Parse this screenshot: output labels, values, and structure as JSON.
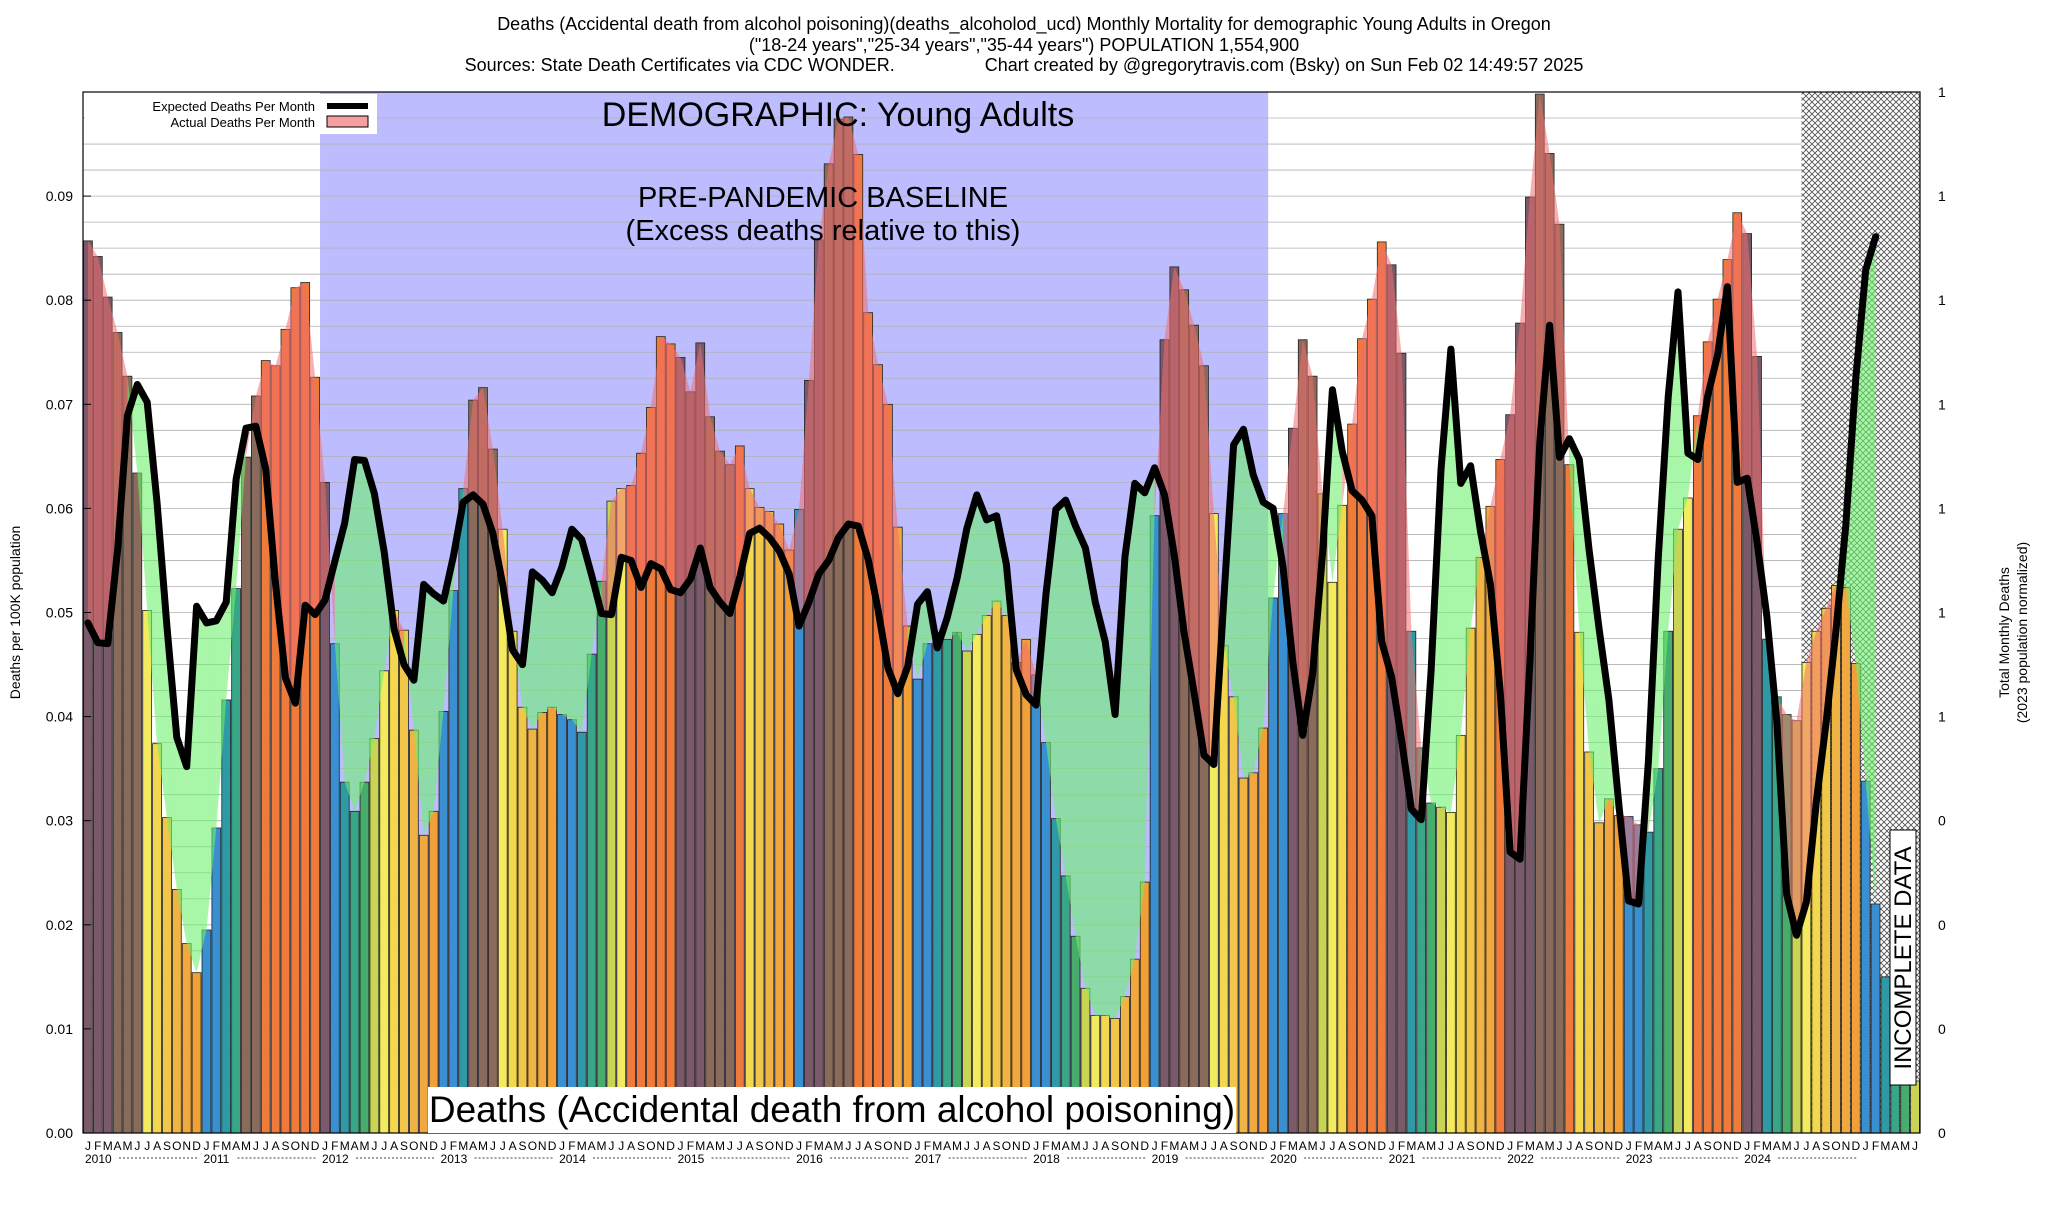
{
  "header": {
    "title": "Deaths (Accidental death from alcohol poisoning)(deaths_alcoholod_ucd) Monthly Mortality for demographic Young Adults in Oregon",
    "subtitle": "(\"18-24 years\",\"25-34 years\",\"35-44 years\") POPULATION 1,554,900",
    "sources": "Sources: State Death Certificates via CDC WONDER.",
    "credit": "Chart created by @gregorytravis.com (Bsky) on Sun Feb 02 14:49:57 2025"
  },
  "chart_data": {
    "type": "bar",
    "title": "Deaths (Accidental death from alcohol poisoning)(deaths_alcoholod_ucd) Monthly Mortality for demographic Young Adults in Oregon",
    "ylabel": "Deaths per 100K population",
    "y2label_line1": "Total Monthly Deaths",
    "y2label_line2": "(2023 population normalized)",
    "ylim": [
      0,
      0.1
    ],
    "yticks": [
      "0.00",
      "0.01",
      "0.02",
      "0.03",
      "0.04",
      "0.05",
      "0.06",
      "0.07",
      "0.08",
      "0.09"
    ],
    "y2ticks": [
      "0",
      "0",
      "0",
      "0",
      "1",
      "1",
      "1",
      "1",
      "1",
      "1",
      "1"
    ],
    "grid": true,
    "legend": {
      "position": "top-left",
      "items": [
        {
          "label": "Expected Deaths Per Month",
          "color": "#000000"
        },
        {
          "label": "Actual Deaths Per Month",
          "color": "#f4a0a0"
        }
      ]
    },
    "annotations": {
      "demographic": "DEMOGRAPHIC: Young Adults",
      "baseline_line1": "PRE-PANDEMIC BASELINE",
      "baseline_line2": "(Excess deaths relative to this)",
      "incomplete": "INCOMPLETE DATA",
      "cause": "Deaths (Accidental death from alcohol poisoning)"
    },
    "month_letters": [
      "J",
      "F",
      "M",
      "A",
      "M",
      "J",
      "J",
      "A",
      "S",
      "O",
      "N",
      "D"
    ],
    "years": [
      "2010",
      "2011",
      "2012",
      "2013",
      "2014",
      "2015",
      "2016",
      "2017",
      "2018",
      "2019",
      "2020",
      "2021",
      "2022",
      "2023",
      "2024"
    ],
    "baseline_period": [
      "2012-01",
      "2019-12"
    ],
    "incomplete_period": [
      "2024-07",
      "2024-12"
    ],
    "series": [
      {
        "name": "Actual Deaths Per Month",
        "values": [
          0.0857,
          0.0842,
          0.0803,
          0.0769,
          0.0727,
          0.0634,
          0.0502,
          0.0374,
          0.0303,
          0.0234,
          0.0182,
          0.0154,
          0.0195,
          0.0293,
          0.0416,
          0.0523,
          0.0649,
          0.0708,
          0.0742,
          0.0737,
          0.0772,
          0.0812,
          0.0817,
          0.0726,
          0.0625,
          0.047,
          0.0337,
          0.0309,
          0.0337,
          0.0379,
          0.0444,
          0.0502,
          0.0483,
          0.0387,
          0.0286,
          0.0309,
          0.0405,
          0.0521,
          0.0619,
          0.0704,
          0.0716,
          0.0657,
          0.058,
          0.0482,
          0.0409,
          0.0388,
          0.0404,
          0.0409,
          0.0402,
          0.0397,
          0.0385,
          0.046,
          0.053,
          0.0607,
          0.0619,
          0.0622,
          0.0653,
          0.0697,
          0.0765,
          0.0758,
          0.0745,
          0.0712,
          0.0759,
          0.0688,
          0.0655,
          0.0642,
          0.066,
          0.0619,
          0.0601,
          0.0597,
          0.0585,
          0.056,
          0.0599,
          0.0723,
          0.0858,
          0.0931,
          0.0974,
          0.0976,
          0.094,
          0.0788,
          0.0738,
          0.07,
          0.0582,
          0.0487,
          0.0436,
          0.047,
          0.0481,
          0.0474,
          0.0481,
          0.0463,
          0.0479,
          0.0497,
          0.0511,
          0.0497,
          0.0452,
          0.0474,
          0.044,
          0.0375,
          0.0302,
          0.0247,
          0.0189,
          0.0139,
          0.0113,
          0.0113,
          0.011,
          0.0131,
          0.0167,
          0.0241,
          0.0593,
          0.0762,
          0.0832,
          0.081,
          0.0776,
          0.0737,
          0.0595,
          0.0468,
          0.0419,
          0.0341,
          0.0346,
          0.0389,
          0.0514,
          0.0595,
          0.0677,
          0.0762,
          0.0727,
          0.0614,
          0.0529,
          0.0603,
          0.0681,
          0.0763,
          0.0801,
          0.0856,
          0.0834,
          0.0749,
          0.0482,
          0.037,
          0.0317,
          0.0313,
          0.0308,
          0.0382,
          0.0485,
          0.0553,
          0.0602,
          0.0647,
          0.069,
          0.0778,
          0.0899,
          0.0998,
          0.0941,
          0.0873,
          0.0642,
          0.0481,
          0.0366,
          0.0298,
          0.0321,
          0.0305,
          0.0304,
          0.0296,
          0.0289,
          0.035,
          0.0482,
          0.058,
          0.061,
          0.0689,
          0.076,
          0.0801,
          0.0839,
          0.0884,
          0.0864,
          0.0746,
          0.0474,
          0.0419,
          0.0402,
          0.0396,
          0.0452,
          0.0482,
          0.0504,
          0.0526,
          0.0524,
          0.0451,
          0.0338,
          0.022,
          0.015,
          0.0107,
          0.008,
          0.005
        ]
      },
      {
        "name": "Expected Deaths Per Month",
        "values": [
          0.049,
          0.0471,
          0.047,
          0.056,
          0.0689,
          0.0719,
          0.0702,
          0.0605,
          0.0487,
          0.038,
          0.0352,
          0.0506,
          0.049,
          0.0492,
          0.051,
          0.0628,
          0.0677,
          0.0679,
          0.0638,
          0.0527,
          0.0437,
          0.0413,
          0.0507,
          0.0498,
          0.0512,
          0.0549,
          0.0586,
          0.0647,
          0.0646,
          0.0614,
          0.0558,
          0.0484,
          0.045,
          0.0435,
          0.0527,
          0.0518,
          0.0511,
          0.0554,
          0.0606,
          0.0613,
          0.0604,
          0.0576,
          0.0527,
          0.0464,
          0.045,
          0.0539,
          0.0531,
          0.0519,
          0.0544,
          0.058,
          0.057,
          0.0536,
          0.0499,
          0.0498,
          0.0553,
          0.055,
          0.0524,
          0.0547,
          0.0542,
          0.0522,
          0.0519,
          0.0532,
          0.0562,
          0.0524,
          0.051,
          0.0499,
          0.0534,
          0.0576,
          0.0581,
          0.0572,
          0.0559,
          0.0537,
          0.0487,
          0.051,
          0.0537,
          0.055,
          0.0572,
          0.0585,
          0.0583,
          0.0551,
          0.0503,
          0.0447,
          0.0422,
          0.0448,
          0.0508,
          0.052,
          0.0466,
          0.0495,
          0.0533,
          0.0581,
          0.0613,
          0.0589,
          0.0593,
          0.0546,
          0.0445,
          0.0421,
          0.0411,
          0.0517,
          0.0599,
          0.0608,
          0.0583,
          0.0562,
          0.051,
          0.0472,
          0.0402,
          0.0554,
          0.0624,
          0.0615,
          0.0639,
          0.0613,
          0.0555,
          0.048,
          0.0423,
          0.0363,
          0.0354,
          0.0511,
          0.0661,
          0.0676,
          0.0632,
          0.0606,
          0.06,
          0.0544,
          0.0452,
          0.0382,
          0.0441,
          0.0556,
          0.0714,
          0.0655,
          0.0617,
          0.0608,
          0.0593,
          0.0472,
          0.0438,
          0.0378,
          0.0311,
          0.0301,
          0.0444,
          0.0637,
          0.0753,
          0.0624,
          0.0641,
          0.0578,
          0.0527,
          0.0423,
          0.027,
          0.0263,
          0.0453,
          0.0664,
          0.0776,
          0.0649,
          0.0667,
          0.0647,
          0.056,
          0.0485,
          0.0416,
          0.0316,
          0.0223,
          0.022,
          0.0357,
          0.0553,
          0.0707,
          0.0808,
          0.0653,
          0.0647,
          0.0708,
          0.0747,
          0.0813,
          0.0625,
          0.0629,
          0.0568,
          0.0496,
          0.0396,
          0.0229,
          0.019,
          0.0222,
          0.0318,
          0.0395,
          0.0484,
          0.0585,
          0.0725,
          0.0829,
          0.0861
        ]
      }
    ]
  }
}
